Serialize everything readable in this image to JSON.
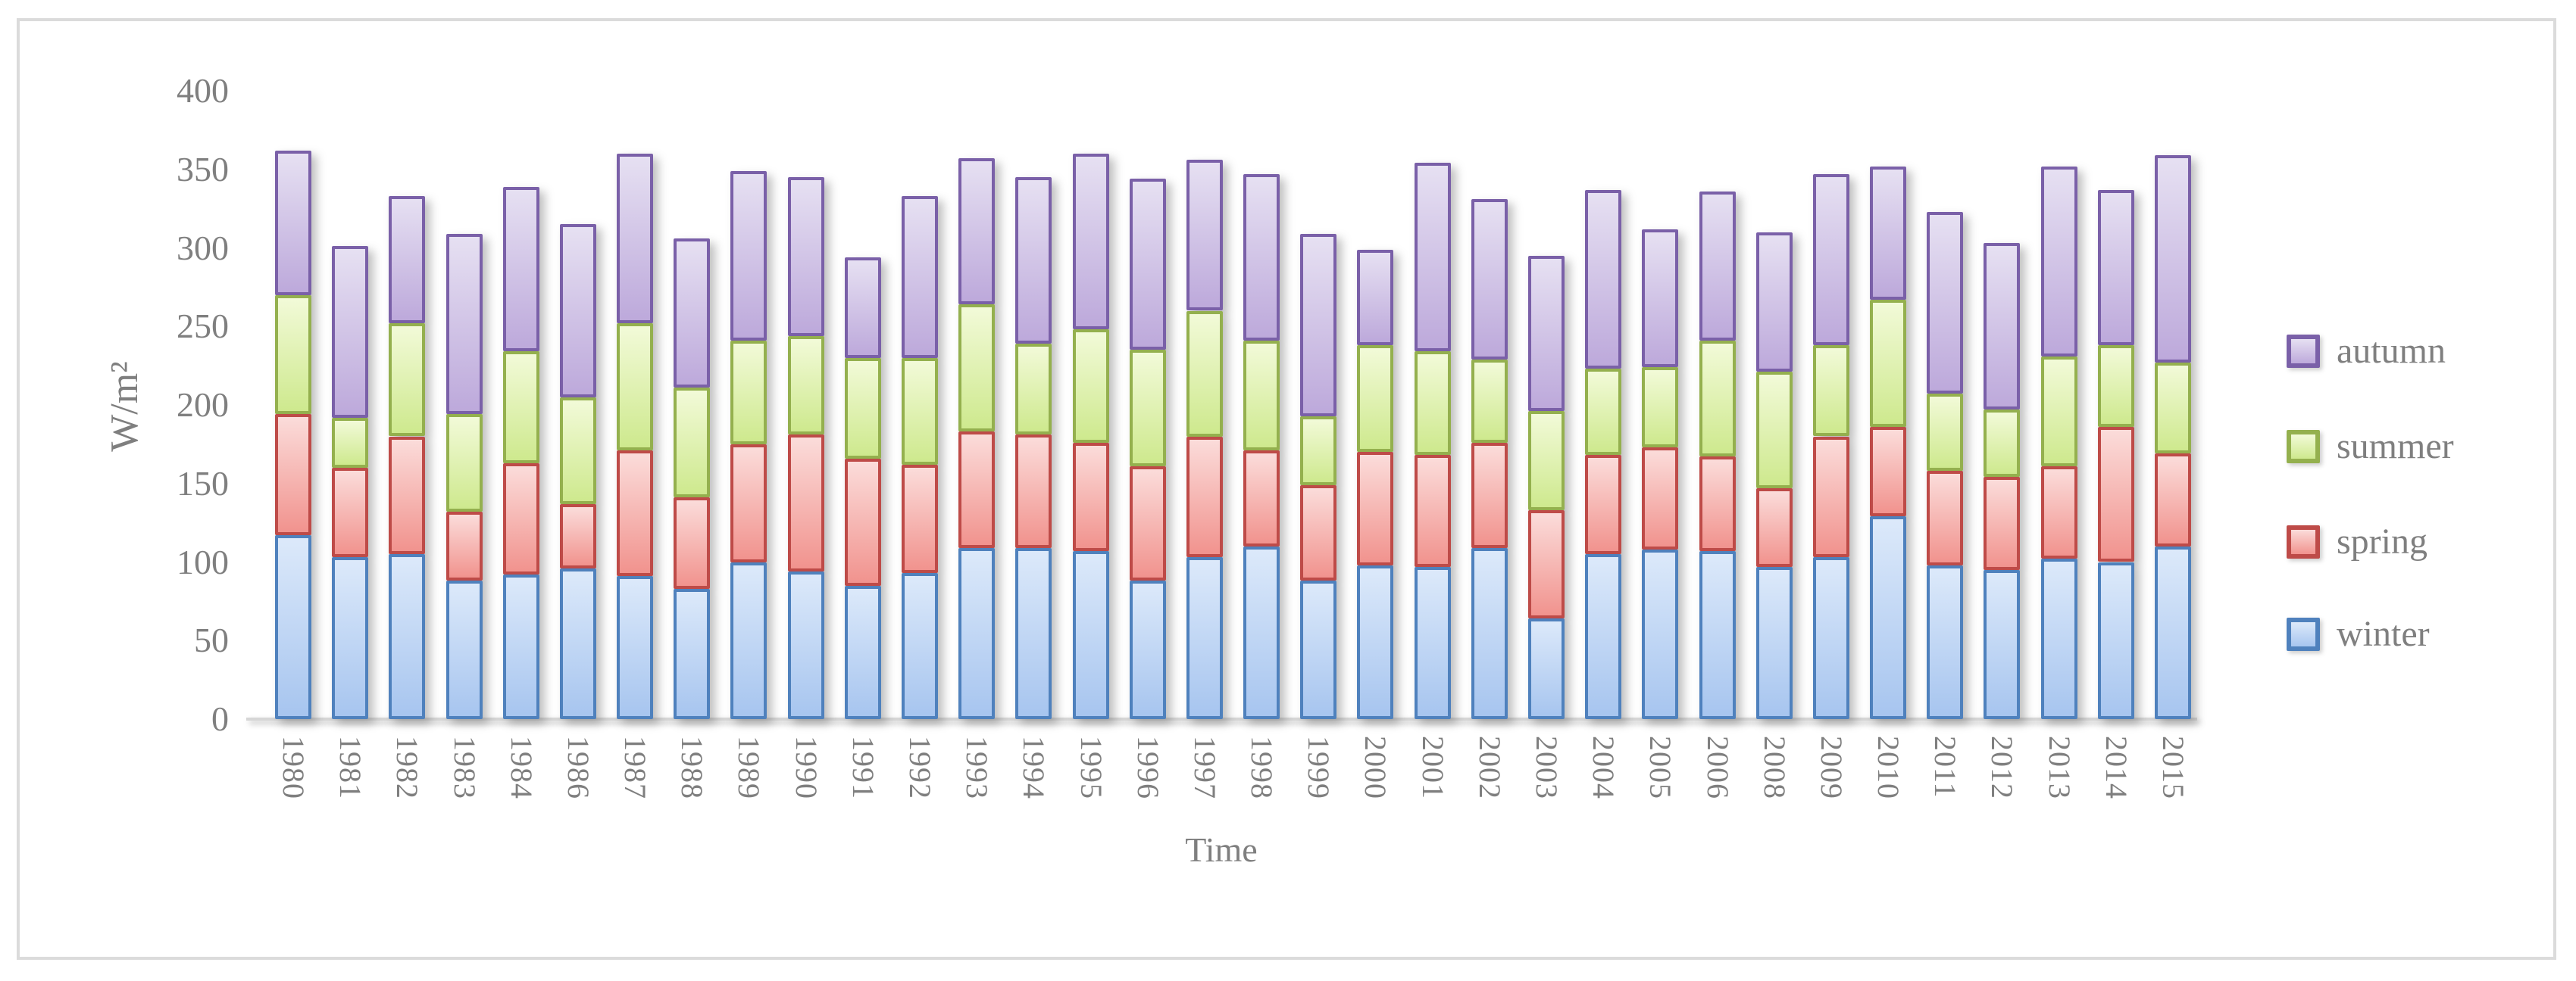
{
  "chart_data": {
    "type": "bar",
    "stacked": true,
    "title": "",
    "xlabel": "Time",
    "ylabel": "W/m²",
    "ylim": [
      0,
      400
    ],
    "y_ticks": [
      0,
      50,
      100,
      150,
      200,
      250,
      300,
      350,
      400
    ],
    "grid": false,
    "legend_position": "right",
    "legend_order": [
      "autumn",
      "summer",
      "spring",
      "winter"
    ],
    "text_color": "#7F7F7F",
    "axis_color": "#D9D9D9",
    "categories": [
      "1980",
      "1981",
      "1982",
      "1983",
      "1984",
      "1986",
      "1987",
      "1988",
      "1989",
      "1990",
      "1991",
      "1992",
      "1993",
      "1994",
      "1995",
      "1996",
      "1997",
      "1998",
      "1999",
      "2000",
      "2001",
      "2002",
      "2003",
      "2004",
      "2005",
      "2006",
      "2008",
      "2009",
      "2010",
      "2011",
      "2012",
      "2013",
      "2014",
      "2015"
    ],
    "series": [
      {
        "name": "winter",
        "color": "#4F81BD",
        "fill_top": "#DCE9FA",
        "fill_bottom": "#A7C5EF",
        "values": [
          117,
          103,
          105,
          88,
          92,
          96,
          91,
          83,
          100,
          94,
          85,
          93,
          109,
          109,
          107,
          88,
          103,
          110,
          88,
          98,
          97,
          109,
          64,
          105,
          108,
          107,
          97,
          103,
          129,
          98,
          95,
          102,
          100,
          110
        ]
      },
      {
        "name": "spring",
        "color": "#BE4B48",
        "fill_top": "#FBDCDA",
        "fill_bottom": "#F1938E",
        "values": [
          77,
          57,
          75,
          44,
          71,
          41,
          80,
          58,
          75,
          87,
          81,
          69,
          74,
          72,
          69,
          73,
          77,
          61,
          61,
          72,
          71,
          67,
          69,
          63,
          65,
          60,
          50,
          77,
          57,
          60,
          59,
          59,
          86,
          59
        ]
      },
      {
        "name": "summer",
        "color": "#94B04E",
        "fill_top": "#F2FAD8",
        "fill_bottom": "#CEE98E",
        "values": [
          76,
          32,
          72,
          62,
          71,
          68,
          81,
          70,
          66,
          63,
          64,
          68,
          81,
          58,
          72,
          74,
          80,
          70,
          44,
          68,
          66,
          53,
          63,
          55,
          51,
          74,
          74,
          58,
          81,
          49,
          43,
          70,
          52,
          58
        ]
      },
      {
        "name": "autumn",
        "color": "#7A60A8",
        "fill_top": "#E6E0F2",
        "fill_bottom": "#BDA9DB",
        "values": [
          92,
          109,
          81,
          115,
          105,
          110,
          108,
          95,
          108,
          101,
          64,
          103,
          93,
          106,
          112,
          109,
          96,
          106,
          116,
          61,
          120,
          102,
          99,
          114,
          88,
          95,
          89,
          109,
          85,
          116,
          106,
          121,
          99,
          132
        ]
      }
    ]
  }
}
